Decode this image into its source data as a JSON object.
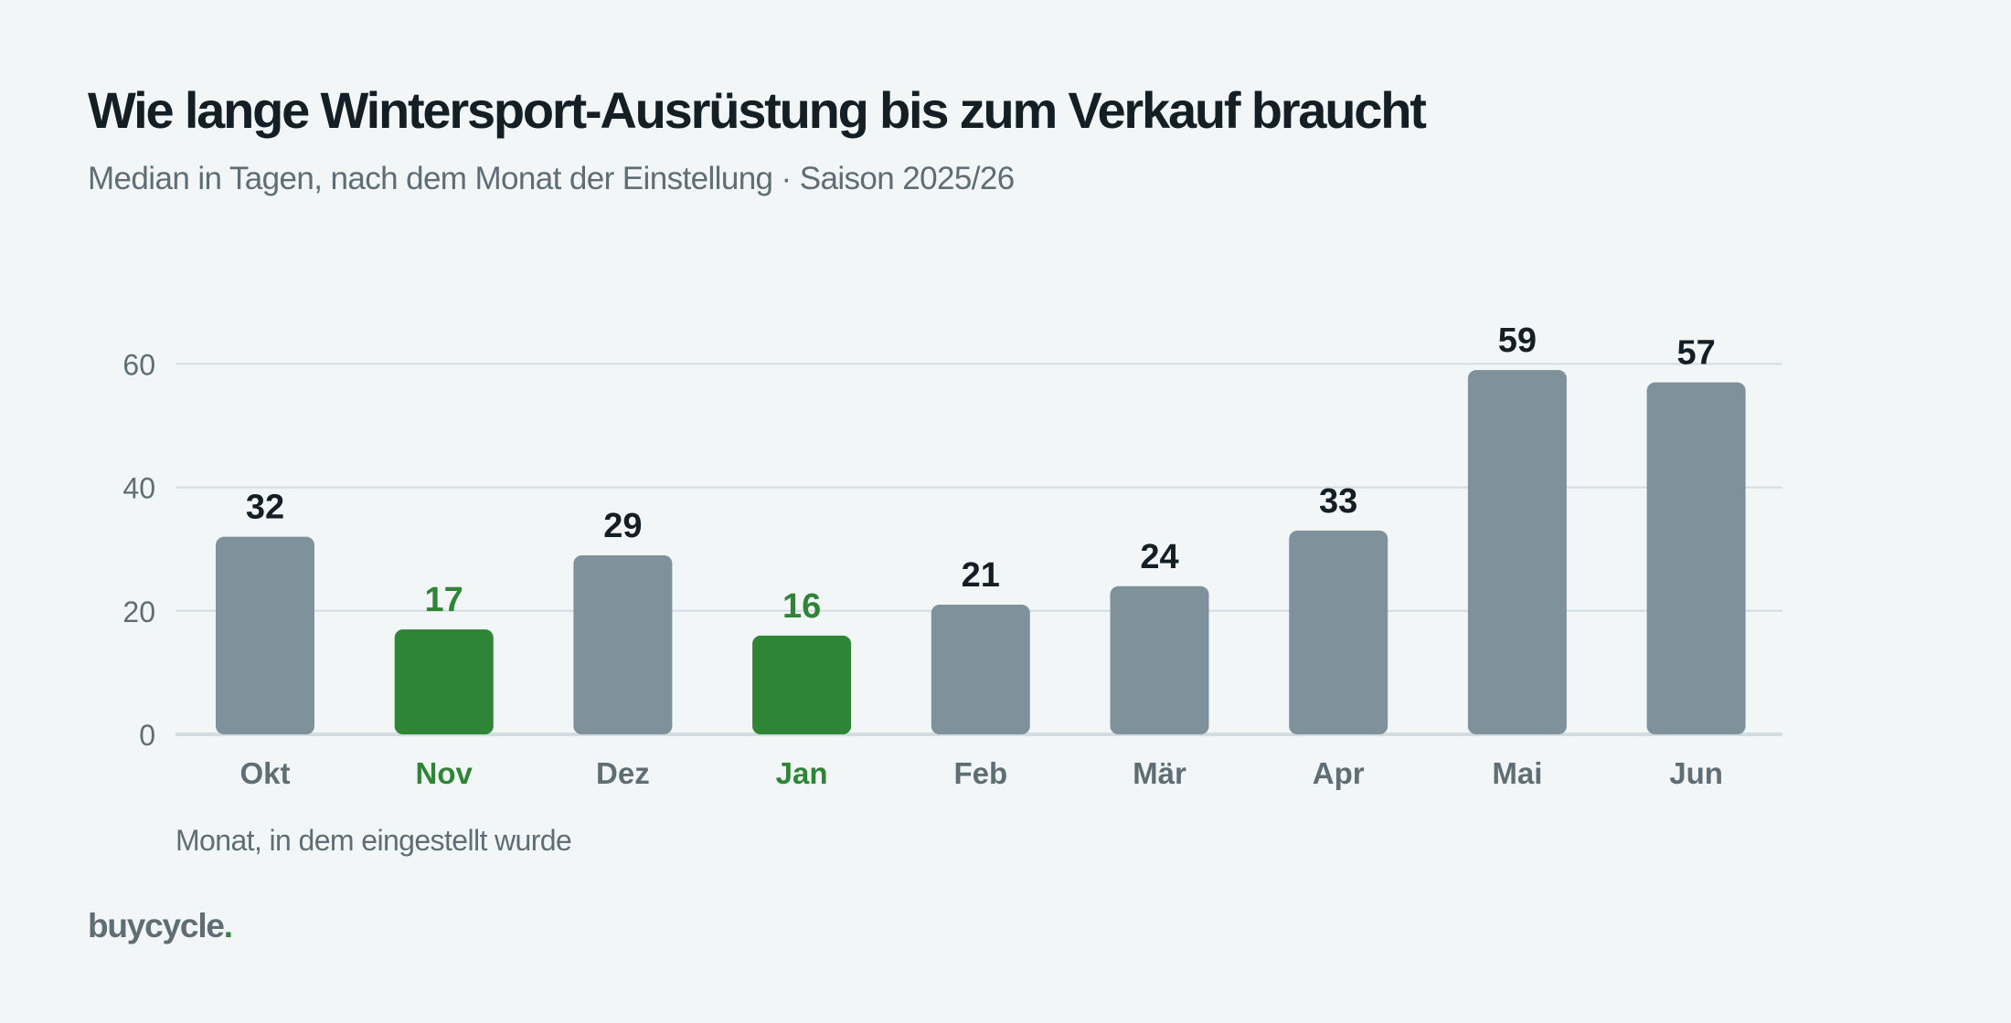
{
  "colors": {
    "background": "#f2f6f7",
    "bar_default": "#7f929c",
    "bar_highlight": "#2e8535",
    "grid": "#d3dde1",
    "text_dark": "#131e25",
    "text_muted": "#5f6d74"
  },
  "brand": {
    "name": "buycycle",
    "dot": "."
  },
  "chart_data": {
    "type": "bar",
    "title": "Wie lange Wintersport-Ausrüstung bis zum Verkauf braucht",
    "subtitle": "Median in Tagen, nach dem Monat der Einstellung · Saison 2025/26",
    "xlabel": "Monat, in dem eingestellt wurde",
    "ylabel": "",
    "categories": [
      "Okt",
      "Nov",
      "Dez",
      "Jan",
      "Feb",
      "Mär",
      "Apr",
      "Mai",
      "Jun"
    ],
    "values": [
      32,
      17,
      29,
      16,
      21,
      24,
      33,
      59,
      57
    ],
    "highlighted": [
      "Nov",
      "Jan"
    ],
    "ylim": [
      0,
      60
    ],
    "yticks": [
      0,
      20,
      40,
      60
    ],
    "grid": true,
    "data_labels": true
  }
}
